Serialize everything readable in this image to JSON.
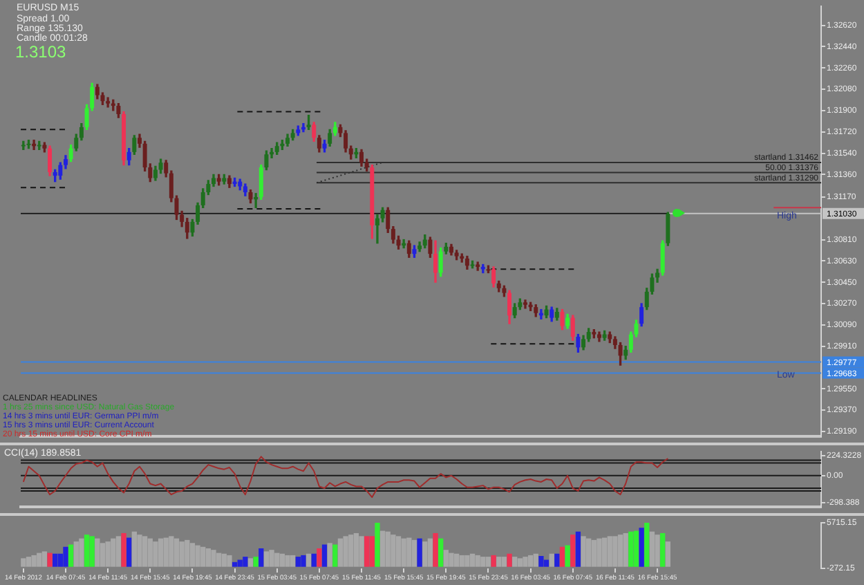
{
  "chart_data": [
    {
      "type": "candlestick",
      "x": [
        "2012-02-14T03:45",
        "2012-02-14T04:15",
        "2012-02-14T04:45",
        "2012-02-14T05:15",
        "2012-02-14T05:45",
        "2012-02-14T06:15",
        "2012-02-14T06:45",
        "2012-02-14T07:15",
        "2012-02-14T07:45",
        "2012-02-14T08:15",
        "2012-02-14T08:45",
        "2012-02-14T09:15",
        "2012-02-14T09:45",
        "2012-02-14T10:15",
        "2012-02-14T10:45",
        "2012-02-14T11:15",
        "2012-02-14T11:45",
        "2012-02-14T12:15",
        "2012-02-14T12:45",
        "2012-02-14T13:15",
        "2012-02-14T13:45",
        "2012-02-14T14:15",
        "2012-02-14T14:45",
        "2012-02-14T15:15",
        "2012-02-14T15:45",
        "2012-02-14T16:15",
        "2012-02-14T16:45",
        "2012-02-14T17:15",
        "2012-02-14T17:45",
        "2012-02-14T18:15",
        "2012-02-14T18:45",
        "2012-02-14T19:15",
        "2012-02-14T19:45",
        "2012-02-14T20:15",
        "2012-02-14T20:45",
        "2012-02-14T21:15",
        "2012-02-14T21:45",
        "2012-02-14T22:15",
        "2012-02-14T22:45",
        "2012-02-14T23:15",
        "2012-02-14T23:45",
        "2012-02-15T00:15",
        "2012-02-15T00:45",
        "2012-02-15T01:15",
        "2012-02-15T01:45",
        "2012-02-15T02:15",
        "2012-02-15T02:45",
        "2012-02-15T03:15",
        "2012-02-15T03:45",
        "2012-02-15T04:15",
        "2012-02-15T04:45",
        "2012-02-15T05:15",
        "2012-02-15T05:45",
        "2012-02-15T06:15",
        "2012-02-15T06:45",
        "2012-02-15T07:15",
        "2012-02-15T07:45",
        "2012-02-15T08:15",
        "2012-02-15T08:45",
        "2012-02-15T09:15",
        "2012-02-15T09:45",
        "2012-02-15T10:15",
        "2012-02-15T10:45",
        "2012-02-15T11:15",
        "2012-02-15T11:45",
        "2012-02-15T12:15",
        "2012-02-15T12:45",
        "2012-02-15T13:15",
        "2012-02-15T13:45",
        "2012-02-15T14:15",
        "2012-02-15T14:45",
        "2012-02-15T15:15",
        "2012-02-15T15:45",
        "2012-02-15T16:15",
        "2012-02-15T16:45",
        "2012-02-15T17:15",
        "2012-02-15T17:45",
        "2012-02-15T18:15",
        "2012-02-15T18:45",
        "2012-02-15T19:15",
        "2012-02-15T19:45",
        "2012-02-15T20:15",
        "2012-02-15T20:45",
        "2012-02-15T21:15",
        "2012-02-15T21:45",
        "2012-02-15T22:15",
        "2012-02-15T22:45",
        "2012-02-15T23:15",
        "2012-02-15T23:45",
        "2012-02-16T00:15",
        "2012-02-16T00:45",
        "2012-02-16T01:15",
        "2012-02-16T01:45",
        "2012-02-16T02:15",
        "2012-02-16T02:45",
        "2012-02-16T03:15",
        "2012-02-16T03:45",
        "2012-02-16T04:15",
        "2012-02-16T04:45",
        "2012-02-16T05:15",
        "2012-02-16T05:45",
        "2012-02-16T06:15",
        "2012-02-16T06:45",
        "2012-02-16T07:15",
        "2012-02-16T07:45",
        "2012-02-16T08:15",
        "2012-02-16T08:45",
        "2012-02-16T09:15",
        "2012-02-16T09:45",
        "2012-02-16T10:15",
        "2012-02-16T10:45",
        "2012-02-16T11:15",
        "2012-02-16T11:45",
        "2012-02-16T12:15",
        "2012-02-16T12:45",
        "2012-02-16T13:15",
        "2012-02-16T13:45",
        "2012-02-16T14:15",
        "2012-02-16T14:45",
        "2012-02-16T15:15",
        "2012-02-16T15:45",
        "2012-02-16T16:15",
        "2012-02-16T16:45"
      ],
      "ohlc": [
        [
          1.316,
          1.3164,
          1.3157,
          1.3161
        ],
        [
          1.3161,
          1.3165,
          1.3158,
          1.3162
        ],
        [
          1.3162,
          1.3165,
          1.3157,
          1.316
        ],
        [
          1.316,
          1.3164,
          1.3157,
          1.3161
        ],
        [
          1.3161,
          1.3163,
          1.3155,
          1.3158
        ],
        [
          1.3158,
          1.316,
          1.3135,
          1.3138
        ],
        [
          1.3138,
          1.314,
          1.313,
          1.3135
        ],
        [
          1.3135,
          1.3146,
          1.3132,
          1.3144
        ],
        [
          1.3144,
          1.3152,
          1.3141,
          1.3149
        ],
        [
          1.3149,
          1.3161,
          1.3147,
          1.3158
        ],
        [
          1.3158,
          1.317,
          1.3156,
          1.3167
        ],
        [
          1.3167,
          1.3179,
          1.3165,
          1.3176
        ],
        [
          1.3176,
          1.3195,
          1.3174,
          1.3192
        ],
        [
          1.3192,
          1.3213,
          1.319,
          1.321
        ],
        [
          1.321,
          1.3212,
          1.32,
          1.3203
        ],
        [
          1.3203,
          1.3205,
          1.3195,
          1.3198
        ],
        [
          1.3198,
          1.3201,
          1.3193,
          1.3196
        ],
        [
          1.3196,
          1.3199,
          1.319,
          1.3194
        ],
        [
          1.3194,
          1.3196,
          1.3184,
          1.3187
        ],
        [
          1.3187,
          1.3189,
          1.3144,
          1.3148
        ],
        [
          1.3148,
          1.3158,
          1.3144,
          1.3155
        ],
        [
          1.3155,
          1.3169,
          1.3153,
          1.3167
        ],
        [
          1.3167,
          1.317,
          1.3159,
          1.3162
        ],
        [
          1.3162,
          1.3164,
          1.3139,
          1.3142
        ],
        [
          1.3142,
          1.3145,
          1.313,
          1.3133
        ],
        [
          1.3133,
          1.3143,
          1.3131,
          1.314
        ],
        [
          1.314,
          1.3149,
          1.3137,
          1.3146
        ],
        [
          1.3146,
          1.3148,
          1.3134,
          1.3137
        ],
        [
          1.3137,
          1.3139,
          1.3113,
          1.3116
        ],
        [
          1.3116,
          1.3118,
          1.3098,
          1.3102
        ],
        [
          1.3102,
          1.3105,
          1.3092,
          1.3096
        ],
        [
          1.3096,
          1.3099,
          1.3082,
          1.3087
        ],
        [
          1.3087,
          1.3098,
          1.3084,
          1.3096
        ],
        [
          1.3096,
          1.3112,
          1.3094,
          1.311
        ],
        [
          1.311,
          1.3124,
          1.3108,
          1.3121
        ],
        [
          1.3121,
          1.3131,
          1.3119,
          1.3128
        ],
        [
          1.3128,
          1.3136,
          1.3126,
          1.3133
        ],
        [
          1.3133,
          1.3136,
          1.3127,
          1.313
        ],
        [
          1.313,
          1.3136,
          1.3128,
          1.3133
        ],
        [
          1.3133,
          1.3135,
          1.3125,
          1.3128
        ],
        [
          1.3128,
          1.3133,
          1.3126,
          1.313
        ],
        [
          1.313,
          1.3132,
          1.3123,
          1.3126
        ],
        [
          1.3126,
          1.3128,
          1.3118,
          1.3121
        ],
        [
          1.3121,
          1.3123,
          1.3112,
          1.3115
        ],
        [
          1.3115,
          1.312,
          1.3108,
          1.3117
        ],
        [
          1.3117,
          1.3144,
          1.3115,
          1.3142
        ],
        [
          1.3142,
          1.3156,
          1.314,
          1.3153
        ],
        [
          1.3153,
          1.3158,
          1.315,
          1.3155
        ],
        [
          1.3155,
          1.3163,
          1.3153,
          1.316
        ],
        [
          1.316,
          1.3165,
          1.3157,
          1.3162
        ],
        [
          1.3162,
          1.317,
          1.316,
          1.3167
        ],
        [
          1.3167,
          1.3174,
          1.3165,
          1.3171
        ],
        [
          1.3171,
          1.3177,
          1.3169,
          1.3174
        ],
        [
          1.3174,
          1.3179,
          1.3172,
          1.3176
        ],
        [
          1.3176,
          1.3186,
          1.3174,
          1.3178
        ],
        [
          1.3178,
          1.318,
          1.3164,
          1.3167
        ],
        [
          1.3167,
          1.3169,
          1.3155,
          1.3158
        ],
        [
          1.3158,
          1.3165,
          1.3155,
          1.3162
        ],
        [
          1.3162,
          1.3174,
          1.316,
          1.3171
        ],
        [
          1.3171,
          1.318,
          1.3169,
          1.3176
        ],
        [
          1.3176,
          1.3178,
          1.3168,
          1.3171
        ],
        [
          1.3171,
          1.3173,
          1.3155,
          1.3158
        ],
        [
          1.3158,
          1.316,
          1.3149,
          1.3153
        ],
        [
          1.3153,
          1.3158,
          1.315,
          1.3155
        ],
        [
          1.3155,
          1.3157,
          1.3143,
          1.3146
        ],
        [
          1.3146,
          1.3149,
          1.3139,
          1.3142
        ],
        [
          1.3142,
          1.3144,
          1.3082,
          1.3093
        ],
        [
          1.3093,
          1.3102,
          1.3078,
          1.3099
        ],
        [
          1.3099,
          1.3108,
          1.3096,
          1.3106
        ],
        [
          1.3106,
          1.3108,
          1.3087,
          1.309
        ],
        [
          1.309,
          1.3092,
          1.3078,
          1.3081
        ],
        [
          1.3081,
          1.3084,
          1.3073,
          1.3076
        ],
        [
          1.3076,
          1.3081,
          1.3074,
          1.3078
        ],
        [
          1.3078,
          1.308,
          1.3066,
          1.3069
        ],
        [
          1.3069,
          1.3076,
          1.3066,
          1.3073
        ],
        [
          1.3073,
          1.3079,
          1.3071,
          1.3076
        ],
        [
          1.3076,
          1.3085,
          1.3074,
          1.3081
        ],
        [
          1.3081,
          1.3083,
          1.3066,
          1.3069
        ],
        [
          1.3069,
          1.308,
          1.3045,
          1.3053
        ],
        [
          1.3053,
          1.3074,
          1.305,
          1.3071
        ],
        [
          1.3071,
          1.3078,
          1.3069,
          1.3075
        ],
        [
          1.3075,
          1.3077,
          1.3068,
          1.307
        ],
        [
          1.307,
          1.3072,
          1.3064,
          1.3067
        ],
        [
          1.3067,
          1.3069,
          1.3062,
          1.3065
        ],
        [
          1.3065,
          1.3067,
          1.3056,
          1.3059
        ],
        [
          1.3059,
          1.3063,
          1.3057,
          1.306
        ],
        [
          1.306,
          1.3062,
          1.3055,
          1.3058
        ],
        [
          1.3058,
          1.306,
          1.3053,
          1.3056
        ],
        [
          1.3056,
          1.3059,
          1.3053,
          1.3056
        ],
        [
          1.3056,
          1.3058,
          1.3041,
          1.3044
        ],
        [
          1.3044,
          1.3046,
          1.3037,
          1.304
        ],
        [
          1.304,
          1.3042,
          1.3033,
          1.3036
        ],
        [
          1.3036,
          1.3038,
          1.301,
          1.3017
        ],
        [
          1.3017,
          1.3027,
          1.3015,
          1.3024
        ],
        [
          1.3024,
          1.3031,
          1.3022,
          1.3028
        ],
        [
          1.3028,
          1.303,
          1.3023,
          1.3026
        ],
        [
          1.3026,
          1.3028,
          1.3021,
          1.3024
        ],
        [
          1.3024,
          1.3026,
          1.3016,
          1.3019
        ],
        [
          1.3019,
          1.3022,
          1.3014,
          1.3017
        ],
        [
          1.3017,
          1.3025,
          1.3015,
          1.3022
        ],
        [
          1.3022,
          1.3024,
          1.3012,
          1.3015
        ],
        [
          1.3015,
          1.3023,
          1.3013,
          1.302
        ],
        [
          1.302,
          1.3022,
          1.3005,
          1.3008
        ],
        [
          1.3008,
          1.3018,
          1.3006,
          1.3015
        ],
        [
          1.3015,
          1.3017,
          1.2996,
          1.2999
        ],
        [
          1.2999,
          1.3001,
          1.2986,
          1.299
        ],
        [
          1.299,
          1.3,
          1.2988,
          1.2997
        ],
        [
          1.2997,
          1.3006,
          1.2995,
          1.3003
        ],
        [
          1.3003,
          1.3005,
          1.2998,
          1.3001
        ],
        [
          1.3001,
          1.3003,
          1.2995,
          1.2998
        ],
        [
          1.2998,
          1.3004,
          1.2996,
          1.3001
        ],
        [
          1.3001,
          1.3003,
          1.2994,
          1.2997
        ],
        [
          1.2997,
          1.2999,
          1.2989,
          1.2992
        ],
        [
          1.2992,
          1.2994,
          1.2975,
          1.2983
        ],
        [
          1.2983,
          1.2991,
          1.298,
          1.2988
        ],
        [
          1.2988,
          1.3003,
          1.2986,
          1.3001
        ],
        [
          1.3001,
          1.3013,
          1.2999,
          1.301
        ],
        [
          1.301,
          1.3027,
          1.3008,
          1.3024
        ],
        [
          1.3024,
          1.304,
          1.3022,
          1.3037
        ],
        [
          1.3037,
          1.3052,
          1.3035,
          1.3049
        ],
        [
          1.3049,
          1.3056,
          1.3045,
          1.3053
        ],
        [
          1.3053,
          1.308,
          1.3051,
          1.3078
        ],
        [
          1.3078,
          1.3104,
          1.3076,
          1.3103
        ]
      ],
      "colors": [
        "#1f6f1f",
        "#1f6f1f",
        "#6a1f1f",
        "#1f6f1f",
        "#6a1f1f",
        "#ee3355",
        "#2222dd",
        "#2222dd",
        "#2222dd",
        "#33ee33",
        "#1f6f1f",
        "#1f6f1f",
        "#33ee33",
        "#33ee33",
        "#6a1f1f",
        "#6a1f1f",
        "#6a1f1f",
        "#6a1f1f",
        "#6a1f1f",
        "#ee3355",
        "#2222dd",
        "#1f6f1f",
        "#6a1f1f",
        "#6a1f1f",
        "#6a1f1f",
        "#1f6f1f",
        "#1f6f1f",
        "#6a1f1f",
        "#6a1f1f",
        "#6a1f1f",
        "#6a1f1f",
        "#6a1f1f",
        "#1f6f1f",
        "#1f6f1f",
        "#1f6f1f",
        "#1f6f1f",
        "#1f6f1f",
        "#6a1f1f",
        "#1f6f1f",
        "#6a1f1f",
        "#2222dd",
        "#2222dd",
        "#2222dd",
        "#6a1f1f",
        "#1f6f1f",
        "#33ee33",
        "#1f6f1f",
        "#1f6f1f",
        "#1f6f1f",
        "#1f6f1f",
        "#1f6f1f",
        "#1f6f1f",
        "#2222dd",
        "#2222dd",
        "#1f6f1f",
        "#ee3355",
        "#6a1f1f",
        "#2222dd",
        "#1f6f1f",
        "#33ee33",
        "#6a1f1f",
        "#6a1f1f",
        "#6a1f1f",
        "#1f6f1f",
        "#6a1f1f",
        "#6a1f1f",
        "#ee3355",
        "#1f6f1f",
        "#1f6f1f",
        "#6a1f1f",
        "#6a1f1f",
        "#6a1f1f",
        "#1f6f1f",
        "#6a1f1f",
        "#2222dd",
        "#1f6f1f",
        "#1f6f1f",
        "#6a1f1f",
        "#ee3355",
        "#33ee33",
        "#1f6f1f",
        "#6a1f1f",
        "#6a1f1f",
        "#6a1f1f",
        "#6a1f1f",
        "#1f6f1f",
        "#6a1f1f",
        "#2222dd",
        "#6a1f1f",
        "#ee3355",
        "#6a1f1f",
        "#6a1f1f",
        "#ee3355",
        "#1f6f1f",
        "#1f6f1f",
        "#6a1f1f",
        "#6a1f1f",
        "#6a1f1f",
        "#2222dd",
        "#1f6f1f",
        "#2222dd",
        "#1f6f1f",
        "#ee3355",
        "#33ee33",
        "#ee3355",
        "#2222dd",
        "#1f6f1f",
        "#1f6f1f",
        "#6a1f1f",
        "#6a1f1f",
        "#1f6f1f",
        "#6a1f1f",
        "#6a1f1f",
        "#6a1f1f",
        "#1f6f1f",
        "#33ee33",
        "#33ee33",
        "#2222dd",
        "#1f6f1f",
        "#1f6f1f",
        "#1f6f1f",
        "#33ee33",
        "#1f6f1f"
      ],
      "xlim": [
        "2012-02-14T03:30",
        "2012-02-17T07:15"
      ],
      "ylim": [
        1.2915,
        1.3278
      ],
      "yticks": [
        {
          "value": 1.3262,
          "label": "1.32620"
        },
        {
          "value": 1.3244,
          "label": "1.32440"
        },
        {
          "value": 1.3226,
          "label": "1.32260"
        },
        {
          "value": 1.3208,
          "label": "1.32080"
        },
        {
          "value": 1.319,
          "label": "1.31900"
        },
        {
          "value": 1.3172,
          "label": "1.31720"
        },
        {
          "value": 1.3154,
          "label": "1.31540"
        },
        {
          "value": 1.3136,
          "label": "1.31360"
        },
        {
          "value": 1.3117,
          "label": "1.31170"
        },
        {
          "value": 1.3081,
          "label": "1.30810"
        },
        {
          "value": 1.3063,
          "label": "1.30630"
        },
        {
          "value": 1.3045,
          "label": "1.30450"
        },
        {
          "value": 1.3027,
          "label": "1.30270"
        },
        {
          "value": 1.3009,
          "label": "1.30090"
        },
        {
          "value": 1.2991,
          "label": "1.29910"
        },
        {
          "value": 1.2955,
          "label": "1.29550"
        },
        {
          "value": 1.2937,
          "label": "1.29370"
        },
        {
          "value": 1.2919,
          "label": "1.29190"
        }
      ],
      "tick_labels": "y",
      "series": [
        {
          "type": "line",
          "x": [
            "2012-02-14T03:30",
            "2012-02-14T08:00"
          ],
          "values": [
            1.3174,
            1.3174
          ],
          "color": "#141414",
          "line_style": "dashed"
        },
        {
          "type": "line",
          "x": [
            "2012-02-14T03:30",
            "2012-02-14T08:00"
          ],
          "values": [
            1.3125,
            1.3125
          ],
          "color": "#141414",
          "line_style": "dashed"
        },
        {
          "type": "line",
          "x": [
            "2012-02-15T00:00",
            "2012-02-15T08:00"
          ],
          "values": [
            1.3189,
            1.3189
          ],
          "color": "#141414",
          "line_style": "dashed"
        },
        {
          "type": "line",
          "x": [
            "2012-02-15T00:00",
            "2012-02-15T08:00"
          ],
          "values": [
            1.3107,
            1.3107
          ],
          "color": "#141414",
          "line_style": "dashed"
        },
        {
          "type": "line",
          "x": [
            "2012-02-16T00:00",
            "2012-02-16T08:00"
          ],
          "values": [
            1.3056,
            1.3056
          ],
          "color": "#141414",
          "line_style": "dashed"
        },
        {
          "type": "line",
          "x": [
            "2012-02-16T00:00",
            "2012-02-16T08:00"
          ],
          "values": [
            1.2993,
            1.2993
          ],
          "color": "#141414",
          "line_style": "dashed"
        },
        {
          "type": "line",
          "name": "startland 1.31462",
          "x": [
            "2012-02-15T07:30",
            "2012-02-17T07:15"
          ],
          "values": [
            1.31462,
            1.31462
          ],
          "color": "#2e2e2e",
          "line_style": "solid"
        },
        {
          "type": "line",
          "name": "50.00 1.31376",
          "x": [
            "2012-02-15T07:30",
            "2012-02-17T07:15"
          ],
          "values": [
            1.31376,
            1.31376
          ],
          "color": "#2e2e2e",
          "line_style": "solid"
        },
        {
          "type": "line",
          "name": "startland 1.31290",
          "x": [
            "2012-02-15T07:30",
            "2012-02-17T07:15"
          ],
          "values": [
            1.3129,
            1.3129
          ],
          "color": "#2e2e2e",
          "line_style": "solid"
        },
        {
          "type": "line",
          "x": [
            "2012-02-15T07:30",
            "2012-02-15T13:45"
          ],
          "values": [
            1.3129,
            1.31462
          ],
          "color": "#2e2e2e",
          "line_style": "dotted"
        },
        {
          "type": "line",
          "x": [
            "2012-02-14T03:30",
            "2012-02-16T16:45"
          ],
          "values": [
            1.3103,
            1.3103
          ],
          "color": "#141414",
          "line_style": "solid"
        },
        {
          "type": "line",
          "x": [
            "2012-02-17T02:45",
            "2012-02-17T07:15"
          ],
          "values": [
            1.3108,
            1.3108
          ],
          "color": "#c8374a",
          "line_style": "solid"
        }
      ],
      "ref_lines": [
        {
          "axis": "y",
          "value": 1.3103,
          "label": "High",
          "color": "#c4c4c4"
        },
        {
          "axis": "y",
          "value": 1.29777,
          "color": "#3b82e0"
        },
        {
          "axis": "y",
          "value": 1.29683,
          "label": "Low",
          "color": "#3b82e0"
        }
      ],
      "annotations": [
        "EURUSD M15",
        "Spread 1.00",
        "Range 135.130",
        "Candle 00:01:28",
        "1.3103",
        "CALENDAR HEADLINES",
        "1 hrs 25 mins since USD: Natural Gas Storage",
        "14 hrs 3 mins until EUR: German PPI m/m",
        "15 hrs 3 mins until EUR: Current Account",
        "20 hrs 15 mins until USD: Core CPI m/m",
        {
          "text": "1.31030",
          "x": "2012-02-17T07:15",
          "y": 1.3103
        },
        {
          "text": "1.29777",
          "x": "2012-02-17T07:15",
          "y": 1.29777
        },
        {
          "text": "1.29683",
          "x": "2012-02-17T07:15",
          "y": 1.29683
        }
      ]
    },
    {
      "type": "line",
      "x": [
        "2012-02-14T03:45",
        "2012-02-14T04:15",
        "2012-02-14T04:45",
        "2012-02-14T05:15",
        "2012-02-14T05:45",
        "2012-02-14T06:15",
        "2012-02-14T06:45",
        "2012-02-14T07:15",
        "2012-02-14T07:45",
        "2012-02-14T08:15",
        "2012-02-14T08:45",
        "2012-02-14T09:15",
        "2012-02-14T09:45",
        "2012-02-14T10:15",
        "2012-02-14T10:45",
        "2012-02-14T11:15",
        "2012-02-14T11:45",
        "2012-02-14T12:15",
        "2012-02-14T12:45",
        "2012-02-14T13:15",
        "2012-02-14T13:45",
        "2012-02-14T14:15",
        "2012-02-14T14:45",
        "2012-02-14T15:15",
        "2012-02-14T15:45",
        "2012-02-14T16:15",
        "2012-02-14T16:45",
        "2012-02-14T17:15",
        "2012-02-14T17:45",
        "2012-02-14T18:15",
        "2012-02-14T18:45",
        "2012-02-14T19:15",
        "2012-02-14T19:45",
        "2012-02-14T20:15",
        "2012-02-14T20:45",
        "2012-02-14T21:15",
        "2012-02-14T21:45",
        "2012-02-14T22:15",
        "2012-02-14T22:45",
        "2012-02-14T23:15",
        "2012-02-14T23:45",
        "2012-02-15T00:15",
        "2012-02-15T00:45",
        "2012-02-15T01:15",
        "2012-02-15T01:45",
        "2012-02-15T02:15",
        "2012-02-15T02:45",
        "2012-02-15T03:15",
        "2012-02-15T03:45",
        "2012-02-15T04:15",
        "2012-02-15T04:45",
        "2012-02-15T05:15",
        "2012-02-15T05:45",
        "2012-02-15T06:15",
        "2012-02-15T06:45",
        "2012-02-15T07:15",
        "2012-02-15T07:45",
        "2012-02-15T08:15",
        "2012-02-15T08:45",
        "2012-02-15T09:15",
        "2012-02-15T09:45",
        "2012-02-15T10:15",
        "2012-02-15T10:45",
        "2012-02-15T11:15",
        "2012-02-15T11:45",
        "2012-02-15T12:15",
        "2012-02-15T12:45",
        "2012-02-15T13:15",
        "2012-02-15T13:45",
        "2012-02-15T14:15",
        "2012-02-15T14:45",
        "2012-02-15T15:15",
        "2012-02-15T15:45",
        "2012-02-15T16:15",
        "2012-02-15T16:45",
        "2012-02-15T17:15",
        "2012-02-15T17:45",
        "2012-02-15T18:15",
        "2012-02-15T18:45",
        "2012-02-15T19:15",
        "2012-02-15T19:45",
        "2012-02-15T20:15",
        "2012-02-15T20:45",
        "2012-02-15T21:15",
        "2012-02-15T21:45",
        "2012-02-15T22:15",
        "2012-02-15T22:45",
        "2012-02-15T23:15",
        "2012-02-15T23:45",
        "2012-02-16T00:15",
        "2012-02-16T00:45",
        "2012-02-16T01:15",
        "2012-02-16T01:45",
        "2012-02-16T02:15",
        "2012-02-16T02:45",
        "2012-02-16T03:15",
        "2012-02-16T03:45",
        "2012-02-16T04:15",
        "2012-02-16T04:45",
        "2012-02-16T05:15",
        "2012-02-16T05:45",
        "2012-02-16T06:15",
        "2012-02-16T06:45",
        "2012-02-16T07:15",
        "2012-02-16T07:45",
        "2012-02-16T08:15",
        "2012-02-16T08:45",
        "2012-02-16T09:15",
        "2012-02-16T09:45",
        "2012-02-16T10:15",
        "2012-02-16T10:45",
        "2012-02-16T11:15",
        "2012-02-16T11:45",
        "2012-02-16T12:15",
        "2012-02-16T12:45",
        "2012-02-16T13:15",
        "2012-02-16T13:45",
        "2012-02-16T14:15",
        "2012-02-16T14:45",
        "2012-02-16T15:15",
        "2012-02-16T15:45",
        "2012-02-16T16:15",
        "2012-02-16T16:45"
      ],
      "values": [
        -70,
        100,
        50,
        0,
        -110,
        -210,
        -170,
        -80,
        0,
        80,
        130,
        140,
        170,
        150,
        100,
        140,
        20,
        -70,
        -140,
        -190,
        -90,
        50,
        100,
        20,
        -90,
        -110,
        -90,
        -150,
        -210,
        -180,
        -170,
        -120,
        -90,
        -20,
        60,
        120,
        100,
        80,
        70,
        90,
        20,
        -120,
        -210,
        -60,
        130,
        210,
        150,
        120,
        100,
        80,
        80,
        100,
        70,
        50,
        140,
        50,
        -120,
        -140,
        -80,
        -120,
        -90,
        -70,
        -100,
        -120,
        -120,
        -170,
        -240,
        -140,
        -100,
        -70,
        -70,
        -70,
        -50,
        -50,
        -60,
        -130,
        -80,
        -30,
        -30,
        20,
        -20,
        0,
        -40,
        -90,
        -130,
        -130,
        -120,
        -110,
        -150,
        -130,
        -130,
        -150,
        -180,
        -100,
        -70,
        -50,
        -40,
        -60,
        -70,
        -40,
        -50,
        -140,
        -90,
        0,
        -140,
        -170,
        -60,
        -50,
        -60,
        -20,
        -50,
        -90,
        -170,
        -210,
        -90,
        100,
        150,
        150,
        140,
        140,
        90,
        150,
        190
      ],
      "color": "#a02c2c",
      "xlim": [
        "2012-02-14T03:30",
        "2012-02-17T07:15"
      ],
      "ylim": [
        -345,
        265
      ],
      "yticks": [
        224.3228,
        {
          "value": 0,
          "label": "0.00"
        },
        -298.388
      ],
      "tick_labels": "y",
      "ref_lines": [
        {
          "axis": "y",
          "value": 170,
          "color": "#1a1a1a"
        },
        {
          "axis": "y",
          "value": 140,
          "color": "#1a1a1a"
        },
        {
          "axis": "y",
          "value": 0,
          "color": "#1a1a1a"
        },
        {
          "axis": "y",
          "value": -140,
          "color": "#1a1a1a"
        },
        {
          "axis": "y",
          "value": -170,
          "color": "#1a1a1a"
        }
      ],
      "annotations": [
        "CCI(14) 189.8581"
      ]
    },
    {
      "type": "bar",
      "x": [
        "2012-02-14T03:45",
        "2012-02-14T04:15",
        "2012-02-14T04:45",
        "2012-02-14T05:15",
        "2012-02-14T05:45",
        "2012-02-14T06:15",
        "2012-02-14T06:45",
        "2012-02-14T07:15",
        "2012-02-14T07:45",
        "2012-02-14T08:15",
        "2012-02-14T08:45",
        "2012-02-14T09:15",
        "2012-02-14T09:45",
        "2012-02-14T10:15",
        "2012-02-14T10:45",
        "2012-02-14T11:15",
        "2012-02-14T11:45",
        "2012-02-14T12:15",
        "2012-02-14T12:45",
        "2012-02-14T13:15",
        "2012-02-14T13:45",
        "2012-02-14T14:15",
        "2012-02-14T14:45",
        "2012-02-14T15:15",
        "2012-02-14T15:45",
        "2012-02-14T16:15",
        "2012-02-14T16:45",
        "2012-02-14T17:15",
        "2012-02-14T17:45",
        "2012-02-14T18:15",
        "2012-02-14T18:45",
        "2012-02-14T19:15",
        "2012-02-14T19:45",
        "2012-02-14T20:15",
        "2012-02-14T20:45",
        "2012-02-14T21:15",
        "2012-02-14T21:45",
        "2012-02-14T22:15",
        "2012-02-14T22:45",
        "2012-02-14T23:15",
        "2012-02-14T23:45",
        "2012-02-15T00:15",
        "2012-02-15T00:45",
        "2012-02-15T01:15",
        "2012-02-15T01:45",
        "2012-02-15T02:15",
        "2012-02-15T02:45",
        "2012-02-15T03:15",
        "2012-02-15T03:45",
        "2012-02-15T04:15",
        "2012-02-15T04:45",
        "2012-02-15T05:15",
        "2012-02-15T05:45",
        "2012-02-15T06:15",
        "2012-02-15T06:45",
        "2012-02-15T07:15",
        "2012-02-15T07:45",
        "2012-02-15T08:15",
        "2012-02-15T08:45",
        "2012-02-15T09:15",
        "2012-02-15T09:45",
        "2012-02-15T10:15",
        "2012-02-15T10:45",
        "2012-02-15T11:15",
        "2012-02-15T11:45",
        "2012-02-15T12:15",
        "2012-02-15T12:45",
        "2012-02-15T13:15",
        "2012-02-15T13:45",
        "2012-02-15T14:15",
        "2012-02-15T14:45",
        "2012-02-15T15:15",
        "2012-02-15T15:45",
        "2012-02-15T16:15",
        "2012-02-15T16:45",
        "2012-02-15T17:15",
        "2012-02-15T17:45",
        "2012-02-15T18:15",
        "2012-02-15T18:45",
        "2012-02-15T19:15",
        "2012-02-15T19:45",
        "2012-02-15T20:15",
        "2012-02-15T20:45",
        "2012-02-15T21:15",
        "2012-02-15T21:45",
        "2012-02-15T22:15",
        "2012-02-15T22:45",
        "2012-02-15T23:15",
        "2012-02-15T23:45",
        "2012-02-16T00:15",
        "2012-02-16T00:45",
        "2012-02-16T01:15",
        "2012-02-16T01:45",
        "2012-02-16T02:15",
        "2012-02-16T02:45",
        "2012-02-16T03:15",
        "2012-02-16T03:45",
        "2012-02-16T04:15",
        "2012-02-16T04:45",
        "2012-02-16T05:15",
        "2012-02-16T05:45",
        "2012-02-16T06:15",
        "2012-02-16T06:45",
        "2012-02-16T07:15",
        "2012-02-16T07:45",
        "2012-02-16T08:15",
        "2012-02-16T08:45",
        "2012-02-16T09:15",
        "2012-02-16T09:45",
        "2012-02-16T10:15",
        "2012-02-16T10:45",
        "2012-02-16T11:15",
        "2012-02-16T11:45",
        "2012-02-16T12:15",
        "2012-02-16T12:45",
        "2012-02-16T13:15",
        "2012-02-16T13:45",
        "2012-02-16T14:15",
        "2012-02-16T14:45",
        "2012-02-16T15:15",
        "2012-02-16T15:45",
        "2012-02-16T16:15",
        "2012-02-16T16:45"
      ],
      "values": [
        1000,
        1200,
        1400,
        1700,
        1900,
        1700,
        1600,
        1600,
        2500,
        2800,
        3200,
        3600,
        4100,
        3900,
        3600,
        3000,
        3200,
        3600,
        3900,
        4300,
        3700,
        4500,
        4100,
        3900,
        3600,
        3200,
        3600,
        3700,
        3900,
        3600,
        3200,
        3400,
        3000,
        2700,
        2500,
        2300,
        2100,
        1700,
        1600,
        1400,
        500,
        800,
        1200,
        1000,
        1200,
        2300,
        1900,
        2100,
        1700,
        1600,
        1400,
        1400,
        1200,
        1400,
        1600,
        1600,
        2300,
        2800,
        3000,
        2800,
        3600,
        3900,
        4100,
        4300,
        3900,
        3900,
        3900,
        5700,
        4600,
        4500,
        4100,
        3900,
        3600,
        3700,
        3400,
        3600,
        3200,
        3600,
        4300,
        3600,
        2100,
        1700,
        1600,
        1400,
        1400,
        1600,
        1400,
        1200,
        1200,
        1400,
        1200,
        1200,
        1600,
        1200,
        1000,
        1200,
        1400,
        1600,
        1300,
        800,
        1600,
        1600,
        2500,
        2700,
        4100,
        4500,
        3900,
        3600,
        3400,
        3600,
        3700,
        3900,
        3900,
        4100,
        4300,
        4500,
        4600,
        5000,
        5700,
        4500,
        4100,
        4300,
        3200
      ],
      "colors": [
        "#a8a8a8",
        "#a8a8a8",
        "#a8a8a8",
        "#a8a8a8",
        "#a8a8a8",
        "#ee3355",
        "#2222dd",
        "#2222dd",
        "#2222dd",
        "#33ee33",
        "#a8a8a8",
        "#a8a8a8",
        "#33ee33",
        "#33ee33",
        "#a8a8a8",
        "#a8a8a8",
        "#a8a8a8",
        "#a8a8a8",
        "#a8a8a8",
        "#ee3355",
        "#2222dd",
        "#a8a8a8",
        "#a8a8a8",
        "#a8a8a8",
        "#a8a8a8",
        "#a8a8a8",
        "#a8a8a8",
        "#a8a8a8",
        "#a8a8a8",
        "#a8a8a8",
        "#a8a8a8",
        "#a8a8a8",
        "#a8a8a8",
        "#a8a8a8",
        "#a8a8a8",
        "#a8a8a8",
        "#a8a8a8",
        "#a8a8a8",
        "#a8a8a8",
        "#a8a8a8",
        "#2222dd",
        "#2222dd",
        "#2222dd",
        "#a8a8a8",
        "#33ee33",
        "#2222dd",
        "#a8a8a8",
        "#a8a8a8",
        "#a8a8a8",
        "#a8a8a8",
        "#a8a8a8",
        "#a8a8a8",
        "#2222dd",
        "#2222dd",
        "#a8a8a8",
        "#2222dd",
        "#ee3355",
        "#2222dd",
        "#a8a8a8",
        "#33ee33",
        "#a8a8a8",
        "#a8a8a8",
        "#a8a8a8",
        "#a8a8a8",
        "#a8a8a8",
        "#ee3355",
        "#ee3355",
        "#33ee33",
        "#a8a8a8",
        "#a8a8a8",
        "#a8a8a8",
        "#a8a8a8",
        "#a8a8a8",
        "#a8a8a8",
        "#a8a8a8",
        "#2222dd",
        "#a8a8a8",
        "#a8a8a8",
        "#ee3355",
        "#33ee33",
        "#a8a8a8",
        "#a8a8a8",
        "#a8a8a8",
        "#a8a8a8",
        "#a8a8a8",
        "#a8a8a8",
        "#a8a8a8",
        "#a8a8a8",
        "#a8a8a8",
        "#ee3355",
        "#a8a8a8",
        "#a8a8a8",
        "#ee3355",
        "#a8a8a8",
        "#a8a8a8",
        "#a8a8a8",
        "#a8a8a8",
        "#a8a8a8",
        "#2222dd",
        "#2222dd",
        "#a8a8a8",
        "#2222dd",
        "#ee3355",
        "#33ee33",
        "#ee3355",
        "#2222dd",
        "#a8a8a8",
        "#a8a8a8",
        "#a8a8a8",
        "#a8a8a8",
        "#a8a8a8",
        "#a8a8a8",
        "#a8a8a8",
        "#a8a8a8",
        "#a8a8a8",
        "#33ee33",
        "#33ee33",
        "#2222dd",
        "#33ee33",
        "#a8a8a8",
        "#a8a8a8",
        "#33ee33",
        "#a8a8a8"
      ],
      "xlim": [
        "2012-02-14T03:30",
        "2012-02-17T07:15"
      ],
      "xticks": [
        {
          "value": "2012-02-14T03:45",
          "label": "14 Feb 2012"
        },
        {
          "value": "2012-02-14T07:45",
          "label": "14 Feb 07:45"
        },
        {
          "value": "2012-02-14T11:45",
          "label": "14 Feb 11:45"
        },
        {
          "value": "2012-02-14T15:45",
          "label": "14 Feb 15:45"
        },
        {
          "value": "2012-02-14T19:45",
          "label": "14 Feb 19:45"
        },
        {
          "value": "2012-02-14T23:45",
          "label": "14 Feb 23:45"
        },
        {
          "value": "2012-02-15T03:45",
          "label": "15 Feb 03:45"
        },
        {
          "value": "2012-02-15T07:45",
          "label": "15 Feb 07:45"
        },
        {
          "value": "2012-02-15T11:45",
          "label": "15 Feb 11:45"
        },
        {
          "value": "2012-02-15T15:45",
          "label": "15 Feb 15:45"
        },
        {
          "value": "2012-02-15T19:45",
          "label": "15 Feb 19:45"
        },
        {
          "value": "2012-02-15T23:45",
          "label": "15 Feb 23:45"
        },
        {
          "value": "2012-02-16T03:45",
          "label": "16 Feb 03:45"
        },
        {
          "value": "2012-02-16T07:45",
          "label": "16 Feb 07:45"
        },
        {
          "value": "2012-02-16T11:45",
          "label": "16 Feb 11:45"
        },
        {
          "value": "2012-02-16T15:45",
          "label": "16 Feb 15:45"
        }
      ],
      "ylim": [
        -272.15,
        5715.15
      ],
      "yticks": [
        5715.15,
        -272.15
      ]
    }
  ]
}
